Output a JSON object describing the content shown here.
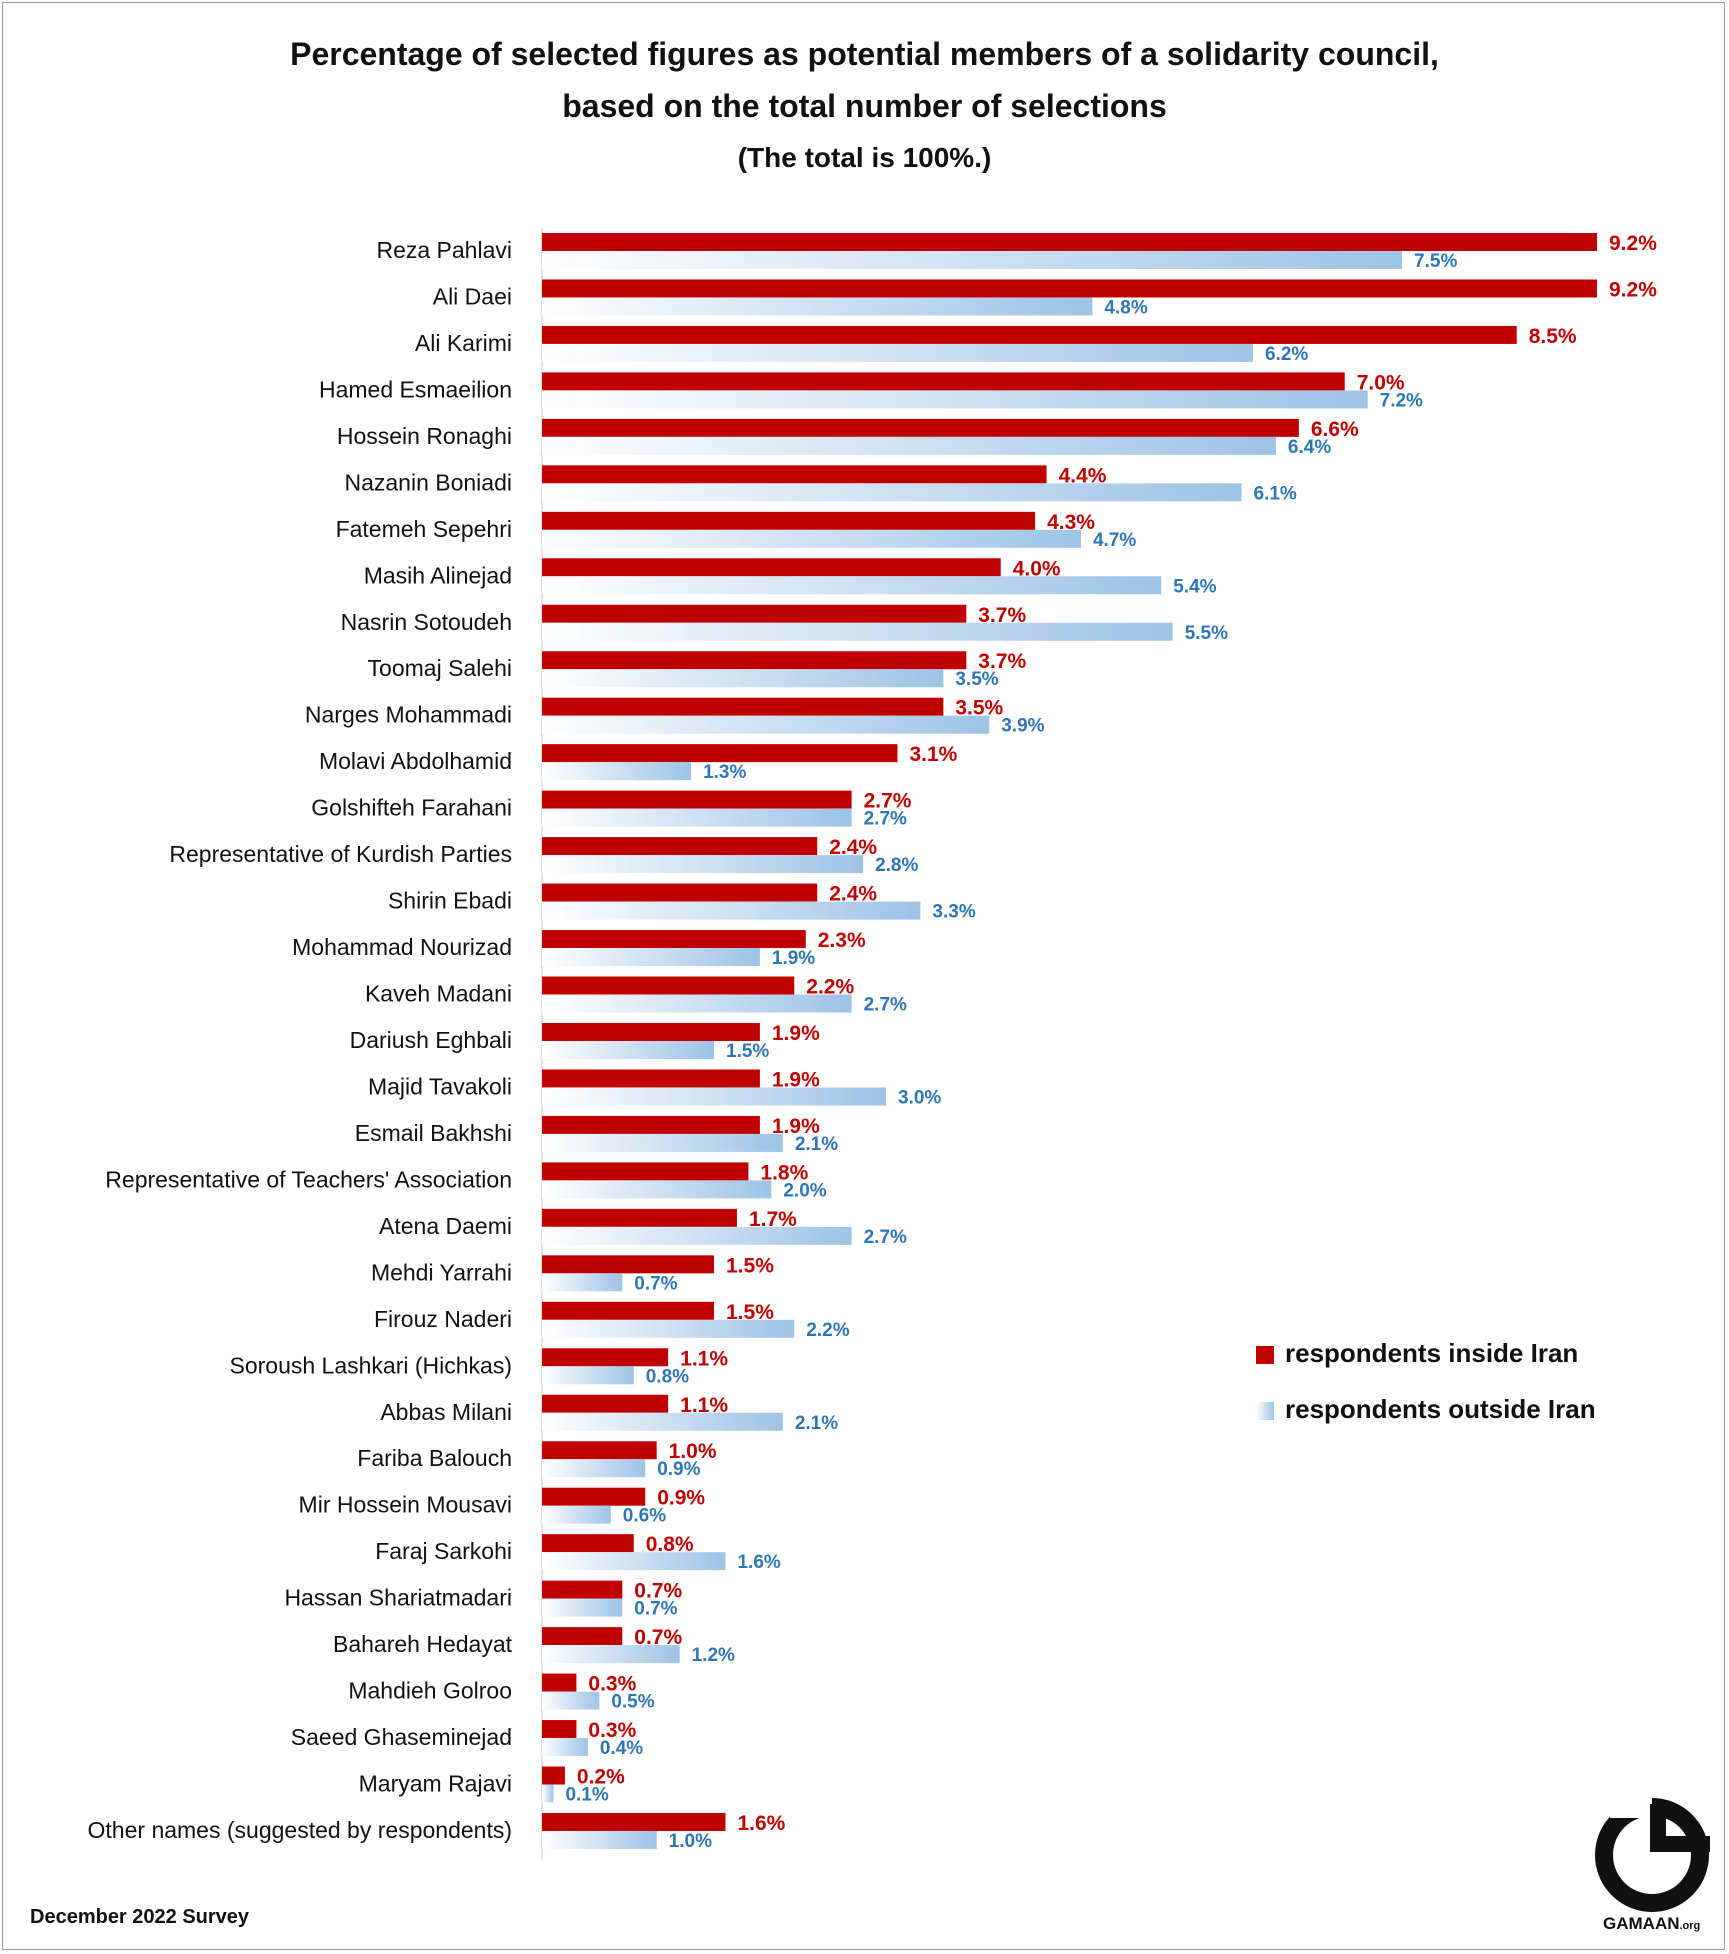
{
  "title_line1": "Percentage of selected figures as potential members of a solidarity council,",
  "title_line2": "based on the total number of selections",
  "subtitle": "(The total is 100%.)",
  "footer": "December 2022 Survey",
  "brand": "GAMAAN",
  "brand_suffix": ".org",
  "colors": {
    "inside": "#c00000",
    "outside_light": "#ffffff",
    "outside_dark": "#9dc3e6",
    "inside_label": "#c00000",
    "outside_label": "#2e75b6"
  },
  "chart_data": {
    "type": "bar",
    "orientation": "horizontal",
    "legend_position": "right",
    "categories": [
      "Reza Pahlavi",
      "Ali Daei",
      "Ali Karimi",
      "Hamed Esmaeilion",
      "Hossein Ronaghi",
      "Nazanin Boniadi",
      "Fatemeh Sepehri",
      "Masih Alinejad",
      "Nasrin Sotoudeh",
      "Toomaj Salehi",
      "Narges Mohammadi",
      "Molavi Abdolhamid",
      "Golshifteh Farahani",
      "Representative of Kurdish Parties",
      "Shirin Ebadi",
      "Mohammad Nourizad",
      "Kaveh Madani",
      "Dariush Eghbali",
      "Majid Tavakoli",
      "Esmail Bakhshi",
      "Representative of Teachers' Association",
      "Atena Daemi",
      "Mehdi Yarrahi",
      "Firouz Naderi",
      "Soroush Lashkari (Hichkas)",
      "Abbas Milani",
      "Fariba Balouch",
      "Mir Hossein Mousavi",
      "Faraj Sarkohi",
      "Hassan Shariatmadari",
      "Bahareh Hedayat",
      "Mahdieh Golroo",
      "Saeed Ghaseminejad",
      "Maryam Rajavi",
      "Other names (suggested by respondents)"
    ],
    "series": [
      {
        "name": "respondents inside Iran",
        "values": [
          9.2,
          9.2,
          8.5,
          7.0,
          6.6,
          4.4,
          4.3,
          4.0,
          3.7,
          3.7,
          3.5,
          3.1,
          2.7,
          2.4,
          2.4,
          2.3,
          2.2,
          1.9,
          1.9,
          1.9,
          1.8,
          1.7,
          1.5,
          1.5,
          1.1,
          1.1,
          1.0,
          0.9,
          0.8,
          0.7,
          0.7,
          0.3,
          0.3,
          0.2,
          1.6
        ]
      },
      {
        "name": "respondents outside Iran",
        "values": [
          7.5,
          4.8,
          6.2,
          7.2,
          6.4,
          6.1,
          4.7,
          5.4,
          5.5,
          3.5,
          3.9,
          1.3,
          2.7,
          2.8,
          3.3,
          1.9,
          2.7,
          1.5,
          3.0,
          2.1,
          2.0,
          2.7,
          0.7,
          2.2,
          0.8,
          2.1,
          0.9,
          0.6,
          1.6,
          0.7,
          1.2,
          0.5,
          0.4,
          0.1,
          1.0
        ]
      }
    ],
    "unit": "%",
    "xlim": [
      0,
      9.2
    ]
  }
}
